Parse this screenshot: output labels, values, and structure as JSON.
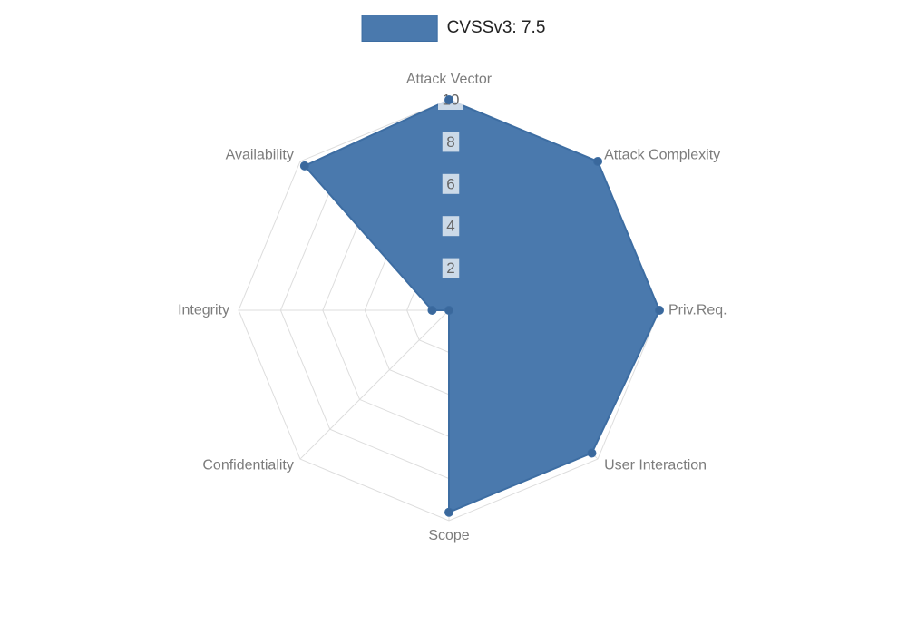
{
  "legend": {
    "label": "CVSSv3: 7.5"
  },
  "chart_data": {
    "type": "radar",
    "title": "CVSSv3: 7.5",
    "categories": [
      "Attack Vector",
      "Attack Complexity",
      "Priv.Req.",
      "User Interaction",
      "Scope",
      "Confidentiality",
      "Integrity",
      "Availability"
    ],
    "series": [
      {
        "name": "CVSSv3: 7.5",
        "values": [
          10,
          10,
          10,
          9.6,
          9.6,
          0,
          0.8,
          9.7
        ]
      }
    ],
    "ticks": [
      2,
      4,
      6,
      8,
      10
    ],
    "rmin": 0,
    "rmax": 10,
    "start_angle_deg": -90,
    "direction": "clockwise",
    "grid": true,
    "legend_position": "top",
    "colors": {
      "series_fill": "#4a79ad",
      "series_stroke": "#3d6da2",
      "point": "#3a689c",
      "grid": "#dddddd",
      "axis_label": "#7c7c7c",
      "tick_text": "#666666",
      "tick_backdrop": "rgba(255,255,255,0.72)",
      "legend_text": "#222222"
    }
  }
}
